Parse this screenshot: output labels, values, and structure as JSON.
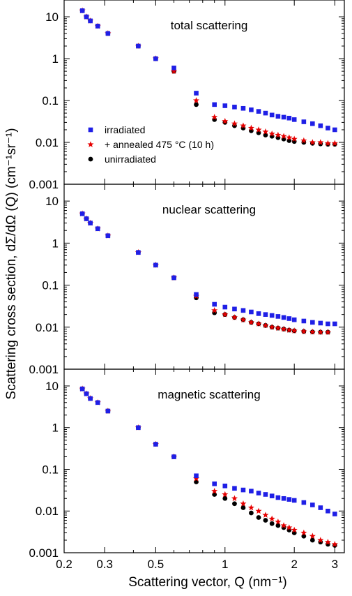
{
  "chart_data": {
    "type": "scatter",
    "layout": "three vertically stacked panels sharing the x axis",
    "xlabel": "Scattering vector, Q (nm⁻¹)",
    "ylabel": "Scattering cross section, dΣ/dΩ (Q) (cm⁻¹sr⁻¹)",
    "x_scale": "log",
    "y_scale": "log",
    "xlim": [
      0.2,
      3.3
    ],
    "ylim": [
      0.001,
      20
    ],
    "x_ticks": [
      0.2,
      0.3,
      0.5,
      1,
      2,
      3
    ],
    "x_tick_labels": [
      "0.2",
      "0.3",
      "0.5",
      "1",
      "2",
      "3"
    ],
    "y_ticks": [
      0.001,
      0.01,
      0.1,
      1,
      10
    ],
    "y_tick_labels": [
      "0.001",
      "0.01",
      "0.1",
      "1",
      "10"
    ],
    "grid": false,
    "legend": {
      "panel": 0,
      "placement": "lower-left",
      "entries": [
        {
          "label": "irradiated",
          "marker": "square",
          "color": "#1f1fe6"
        },
        {
          "label": "+ annealed 475 °C (10 h)",
          "marker": "star",
          "color": "#e60000"
        },
        {
          "label": "unirradiated",
          "marker": "circle",
          "color": "#000000"
        }
      ]
    },
    "panels": [
      {
        "title": "total scattering",
        "anchors": {
          "x": [
            0.22,
            0.3,
            0.4,
            0.5,
            0.6,
            0.7,
            0.8,
            0.9
          ],
          "y": [
            13,
            5.0,
            1.6,
            0.6,
            0.25,
            0.12,
            0.075,
            0.06
          ]
        },
        "series": [
          {
            "name": "irradiated",
            "marker": "square",
            "color": "#1f1fe6",
            "x": [
              0.24,
              0.25,
              0.26,
              0.28,
              0.31,
              0.42,
              0.5,
              0.6,
              0.75,
              0.9,
              1.0,
              1.1,
              1.2,
              1.3,
              1.4,
              1.5,
              1.6,
              1.7,
              1.8,
              1.9,
              2.0,
              2.2,
              2.4,
              2.6,
              2.8,
              3.0
            ],
            "y": [
              14,
              10,
              8,
              6,
              4,
              2,
              1,
              0.6,
              0.15,
              0.08,
              0.075,
              0.07,
              0.065,
              0.06,
              0.055,
              0.05,
              0.045,
              0.042,
              0.04,
              0.038,
              0.035,
              0.031,
              0.028,
              0.025,
              0.022,
              0.02
            ]
          },
          {
            "name": "+ annealed 475 °C (10 h)",
            "marker": "star",
            "color": "#e60000",
            "x": [
              0.24,
              0.25,
              0.26,
              0.28,
              0.31,
              0.42,
              0.5,
              0.6,
              0.75,
              0.9,
              1.0,
              1.1,
              1.2,
              1.3,
              1.4,
              1.5,
              1.6,
              1.7,
              1.8,
              1.9,
              2.0,
              2.2,
              2.4,
              2.6,
              2.8,
              3.0
            ],
            "y": [
              14,
              10,
              8,
              6,
              4,
              2,
              1,
              0.5,
              0.1,
              0.04,
              0.032,
              0.028,
              0.025,
              0.022,
              0.02,
              0.018,
              0.016,
              0.015,
              0.014,
              0.013,
              0.012,
              0.011,
              0.01,
              0.01,
              0.0095,
              0.0095
            ]
          },
          {
            "name": "unirradiated",
            "marker": "circle",
            "color": "#000000",
            "x": [
              0.24,
              0.25,
              0.26,
              0.28,
              0.31,
              0.42,
              0.5,
              0.6,
              0.75,
              0.9,
              1.0,
              1.1,
              1.2,
              1.3,
              1.4,
              1.5,
              1.6,
              1.7,
              1.8,
              1.9,
              2.0,
              2.2,
              2.4,
              2.6,
              2.8,
              3.0
            ],
            "y": [
              14,
              10,
              8,
              6,
              4,
              2,
              1,
              0.5,
              0.08,
              0.035,
              0.03,
              0.025,
              0.022,
              0.019,
              0.017,
              0.015,
              0.014,
              0.013,
              0.012,
              0.011,
              0.0105,
              0.01,
              0.0095,
              0.0092,
              0.009,
              0.009
            ]
          }
        ]
      },
      {
        "title": "nuclear scattering",
        "anchors": {
          "x": [
            0.22,
            0.3,
            0.4,
            0.5,
            0.6,
            0.7,
            0.8,
            0.9
          ],
          "y": [
            5.0,
            2.0,
            0.7,
            0.3,
            0.13,
            0.07,
            0.045,
            0.035
          ]
        },
        "series": [
          {
            "name": "irradiated",
            "marker": "square",
            "color": "#1f1fe6",
            "x": [
              0.24,
              0.25,
              0.26,
              0.28,
              0.31,
              0.42,
              0.5,
              0.6,
              0.75,
              0.9,
              1.0,
              1.1,
              1.2,
              1.3,
              1.4,
              1.5,
              1.6,
              1.7,
              1.8,
              1.9,
              2.0,
              2.2,
              2.4,
              2.6,
              2.8,
              3.0
            ],
            "y": [
              5,
              3.8,
              3,
              2.2,
              1.5,
              0.6,
              0.3,
              0.15,
              0.06,
              0.035,
              0.03,
              0.027,
              0.025,
              0.023,
              0.021,
              0.02,
              0.019,
              0.018,
              0.017,
              0.016,
              0.015,
              0.014,
              0.013,
              0.0125,
              0.012,
              0.012
            ]
          },
          {
            "name": "+ annealed 475 °C (10 h)",
            "marker": "star",
            "color": "#e60000",
            "x": [
              0.24,
              0.25,
              0.26,
              0.28,
              0.31,
              0.42,
              0.5,
              0.6,
              0.75,
              0.9,
              1.0,
              1.1,
              1.2,
              1.3,
              1.4,
              1.5,
              1.6,
              1.7,
              1.8,
              1.9,
              2.0,
              2.2,
              2.4,
              2.6,
              2.8
            ],
            "y": [
              5,
              3.8,
              3,
              2.2,
              1.5,
              0.6,
              0.3,
              0.15,
              0.055,
              0.025,
              0.02,
              0.017,
              0.015,
              0.013,
              0.012,
              0.011,
              0.01,
              0.0095,
              0.009,
              0.0085,
              0.0082,
              0.0079,
              0.0077,
              0.0076,
              0.0076
            ]
          },
          {
            "name": "unirradiated",
            "marker": "circle",
            "color": "#000000",
            "x": [
              0.24,
              0.25,
              0.26,
              0.28,
              0.31,
              0.42,
              0.5,
              0.6,
              0.75,
              0.9,
              1.0,
              1.1,
              1.2,
              1.3,
              1.4,
              1.5,
              1.6,
              1.7,
              1.8,
              1.9,
              2.0,
              2.2,
              2.4,
              2.6,
              2.8
            ],
            "y": [
              5,
              3.8,
              3,
              2.2,
              1.5,
              0.6,
              0.3,
              0.15,
              0.05,
              0.022,
              0.02,
              0.017,
              0.015,
              0.013,
              0.012,
              0.011,
              0.01,
              0.0095,
              0.009,
              0.0085,
              0.0082,
              0.0079,
              0.0077,
              0.0076,
              0.0076
            ]
          }
        ]
      },
      {
        "title": "magnetic scattering",
        "anchors": {
          "x": [
            0.22,
            0.3,
            0.4,
            0.5,
            0.6,
            0.7,
            0.8,
            0.9
          ],
          "y": [
            8.5,
            3.2,
            1.05,
            0.4,
            0.16,
            0.075,
            0.05,
            0.042
          ]
        },
        "series": [
          {
            "name": "irradiated",
            "marker": "square",
            "color": "#1f1fe6",
            "x": [
              0.24,
              0.25,
              0.26,
              0.28,
              0.31,
              0.42,
              0.5,
              0.6,
              0.75,
              0.9,
              1.0,
              1.1,
              1.2,
              1.3,
              1.4,
              1.5,
              1.6,
              1.7,
              1.8,
              1.9,
              2.0,
              2.2,
              2.4,
              2.6,
              2.8,
              3.0
            ],
            "y": [
              8.5,
              6.5,
              5,
              4,
              2.5,
              1,
              0.4,
              0.2,
              0.07,
              0.045,
              0.04,
              0.035,
              0.032,
              0.03,
              0.027,
              0.025,
              0.023,
              0.021,
              0.02,
              0.019,
              0.018,
              0.016,
              0.014,
              0.012,
              0.01,
              0.0085
            ]
          },
          {
            "name": "+ annealed 475 °C (10 h)",
            "marker": "star",
            "color": "#e60000",
            "x": [
              0.24,
              0.25,
              0.26,
              0.28,
              0.31,
              0.42,
              0.5,
              0.6,
              0.75,
              0.9,
              1.0,
              1.1,
              1.2,
              1.3,
              1.4,
              1.5,
              1.6,
              1.7,
              1.8,
              1.9,
              2.0,
              2.2,
              2.4,
              2.6,
              2.8,
              3.0
            ],
            "y": [
              8.5,
              6.5,
              5,
              4,
              2.5,
              1,
              0.4,
              0.2,
              0.06,
              0.03,
              0.025,
              0.02,
              0.015,
              0.012,
              0.01,
              0.008,
              0.0065,
              0.0055,
              0.0045,
              0.004,
              0.0035,
              0.003,
              0.0025,
              0.002,
              0.0018,
              0.0016
            ]
          },
          {
            "name": "unirradiated",
            "marker": "circle",
            "color": "#000000",
            "x": [
              0.24,
              0.25,
              0.26,
              0.28,
              0.31,
              0.42,
              0.5,
              0.6,
              0.75,
              0.9,
              1.0,
              1.1,
              1.2,
              1.3,
              1.4,
              1.5,
              1.6,
              1.7,
              1.8,
              1.9,
              2.0,
              2.2,
              2.4,
              2.6,
              2.8,
              3.0
            ],
            "y": [
              8.5,
              6.5,
              5,
              4,
              2.5,
              1,
              0.4,
              0.2,
              0.05,
              0.025,
              0.02,
              0.015,
              0.012,
              0.009,
              0.007,
              0.006,
              0.005,
              0.0045,
              0.004,
              0.0035,
              0.003,
              0.0025,
              0.002,
              0.0018,
              0.0016,
              0.0015
            ]
          }
        ]
      }
    ]
  }
}
